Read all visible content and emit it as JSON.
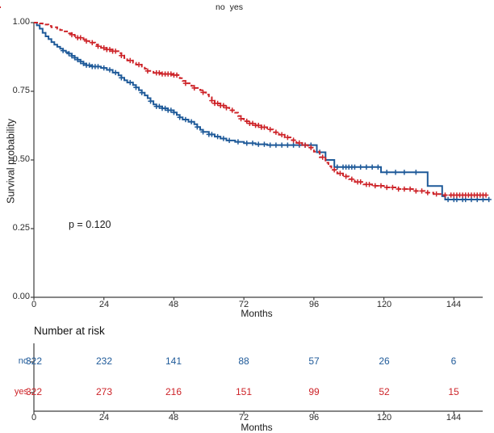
{
  "legend": {
    "items": [
      {
        "label": "no",
        "color": "#1f5a99",
        "line_style": "solid"
      },
      {
        "label": "yes",
        "color": "#cd2328",
        "line_style": "dashed"
      }
    ]
  },
  "plot": {
    "ylabel": "Survival probability",
    "xlabel": "Months",
    "pvalue": "p = 0.120",
    "yticks": [
      "1.00",
      "0.75",
      "0.50",
      "0.25",
      "0.00"
    ],
    "xticks": [
      "0",
      "24",
      "48",
      "72",
      "96",
      "120",
      "144"
    ]
  },
  "risk_table": {
    "title": "Number at risk",
    "xlabel": "Months",
    "xticks": [
      "0",
      "24",
      "48",
      "72",
      "96",
      "120",
      "144"
    ],
    "rows": [
      {
        "label": "no",
        "color": "#1f5a99",
        "values": [
          "322",
          "232",
          "141",
          "88",
          "57",
          "26",
          "6"
        ]
      },
      {
        "label": "yes",
        "color": "#cd2328",
        "values": [
          "322",
          "273",
          "216",
          "151",
          "99",
          "52",
          "15"
        ]
      }
    ]
  },
  "chart_data": {
    "type": "line",
    "subtype": "kaplan-meier-step",
    "title": "",
    "xlabel": "Months",
    "ylabel": "Survival probability",
    "xlim": [
      0,
      156
    ],
    "ylim": [
      0,
      1
    ],
    "xticks": [
      {
        "v": 0,
        "label": "0"
      },
      {
        "v": 24,
        "label": "24"
      },
      {
        "v": 48,
        "label": "48"
      },
      {
        "v": 72,
        "label": "72"
      },
      {
        "v": 96,
        "label": "96"
      },
      {
        "v": 120,
        "label": "120"
      },
      {
        "v": 144,
        "label": "144"
      }
    ],
    "yticks": [
      {
        "v": 1.0,
        "label": "1.00"
      },
      {
        "v": 0.75,
        "label": "0.75"
      },
      {
        "v": 0.5,
        "label": "0.50"
      },
      {
        "v": 0.25,
        "label": "0.25"
      },
      {
        "v": 0.0,
        "label": "0.00"
      }
    ],
    "grid": false,
    "legend_position": "top",
    "annotation": "p = 0.120",
    "series": [
      {
        "name": "no",
        "color": "#1f5a99",
        "style": "solid",
        "step_points": [
          [
            0,
            1.0
          ],
          [
            1,
            0.99
          ],
          [
            2,
            0.978
          ],
          [
            3,
            0.963
          ],
          [
            4,
            0.95
          ],
          [
            5,
            0.94
          ],
          [
            6,
            0.929
          ],
          [
            7,
            0.92
          ],
          [
            8,
            0.912
          ],
          [
            9,
            0.905
          ],
          [
            10,
            0.898
          ],
          [
            11,
            0.892
          ],
          [
            12,
            0.887
          ],
          [
            13,
            0.879
          ],
          [
            14,
            0.872
          ],
          [
            15,
            0.865
          ],
          [
            16,
            0.858
          ],
          [
            17,
            0.851
          ],
          [
            18,
            0.845
          ],
          [
            20,
            0.84
          ],
          [
            23,
            0.835
          ],
          [
            25,
            0.828
          ],
          [
            27,
            0.818
          ],
          [
            29,
            0.808
          ],
          [
            30,
            0.799
          ],
          [
            31,
            0.79
          ],
          [
            32,
            0.782
          ],
          [
            34,
            0.773
          ],
          [
            35,
            0.764
          ],
          [
            36,
            0.754
          ],
          [
            37,
            0.745
          ],
          [
            38,
            0.735
          ],
          [
            39,
            0.725
          ],
          [
            40,
            0.714
          ],
          [
            41,
            0.702
          ],
          [
            42,
            0.695
          ],
          [
            44,
            0.688
          ],
          [
            46,
            0.681
          ],
          [
            48,
            0.673
          ],
          [
            49,
            0.664
          ],
          [
            50,
            0.655
          ],
          [
            51,
            0.647
          ],
          [
            53,
            0.639
          ],
          [
            55,
            0.63
          ],
          [
            56,
            0.62
          ],
          [
            57,
            0.61
          ],
          [
            58,
            0.602
          ],
          [
            60,
            0.593
          ],
          [
            62,
            0.585
          ],
          [
            64,
            0.578
          ],
          [
            66,
            0.571
          ],
          [
            69,
            0.566
          ],
          [
            72,
            0.561
          ],
          [
            76,
            0.557
          ],
          [
            80,
            0.554
          ],
          [
            97,
            0.528
          ],
          [
            100,
            0.5
          ],
          [
            103,
            0.474
          ],
          [
            119,
            0.455
          ],
          [
            135,
            0.405
          ],
          [
            140,
            0.368
          ],
          [
            141,
            0.356
          ],
          [
            156,
            0.356
          ]
        ],
        "censor_times": [
          10,
          12,
          13,
          14,
          15,
          16,
          17,
          18,
          19,
          20,
          21,
          22,
          24,
          26,
          28,
          30,
          33,
          35,
          37,
          40,
          42,
          43,
          44,
          45,
          46,
          47,
          48,
          50,
          52,
          54,
          56,
          58,
          60,
          61,
          63,
          65,
          67,
          70,
          73,
          75,
          77,
          79,
          81,
          83,
          85,
          87,
          89,
          91,
          93,
          95,
          98,
          104,
          106,
          107,
          108,
          109,
          110,
          112,
          114,
          116,
          118,
          121,
          124,
          127,
          131,
          142,
          144,
          145,
          147,
          148,
          150,
          152,
          154,
          156
        ],
        "number_at_risk": [
          322,
          232,
          141,
          88,
          57,
          26,
          6
        ]
      },
      {
        "name": "yes",
        "color": "#cd2328",
        "style": "dashed",
        "step_points": [
          [
            0,
            1.0
          ],
          [
            2,
            0.997
          ],
          [
            3,
            0.993
          ],
          [
            5,
            0.988
          ],
          [
            6,
            0.983
          ],
          [
            8,
            0.978
          ],
          [
            9,
            0.973
          ],
          [
            10,
            0.968
          ],
          [
            12,
            0.961
          ],
          [
            13,
            0.956
          ],
          [
            14,
            0.951
          ],
          [
            15,
            0.945
          ],
          [
            17,
            0.939
          ],
          [
            18,
            0.933
          ],
          [
            19,
            0.927
          ],
          [
            21,
            0.92
          ],
          [
            22,
            0.914
          ],
          [
            23,
            0.908
          ],
          [
            25,
            0.902
          ],
          [
            27,
            0.896
          ],
          [
            29,
            0.889
          ],
          [
            30,
            0.88
          ],
          [
            31,
            0.871
          ],
          [
            32,
            0.862
          ],
          [
            34,
            0.854
          ],
          [
            35,
            0.847
          ],
          [
            37,
            0.84
          ],
          [
            38,
            0.832
          ],
          [
            39,
            0.824
          ],
          [
            41,
            0.817
          ],
          [
            44,
            0.813
          ],
          [
            48,
            0.809
          ],
          [
            50,
            0.798
          ],
          [
            51,
            0.788
          ],
          [
            52,
            0.779
          ],
          [
            54,
            0.77
          ],
          [
            55,
            0.762
          ],
          [
            57,
            0.754
          ],
          [
            58,
            0.746
          ],
          [
            59,
            0.738
          ],
          [
            60,
            0.728
          ],
          [
            61,
            0.716
          ],
          [
            62,
            0.706
          ],
          [
            64,
            0.698
          ],
          [
            66,
            0.69
          ],
          [
            67,
            0.681
          ],
          [
            69,
            0.672
          ],
          [
            70,
            0.66
          ],
          [
            71,
            0.65
          ],
          [
            72,
            0.641
          ],
          [
            74,
            0.633
          ],
          [
            76,
            0.626
          ],
          [
            78,
            0.619
          ],
          [
            80,
            0.611
          ],
          [
            82,
            0.601
          ],
          [
            84,
            0.592
          ],
          [
            86,
            0.582
          ],
          [
            88,
            0.572
          ],
          [
            90,
            0.562
          ],
          [
            92,
            0.554
          ],
          [
            94,
            0.545
          ],
          [
            96,
            0.53
          ],
          [
            98,
            0.51
          ],
          [
            100,
            0.49
          ],
          [
            101,
            0.477
          ],
          [
            102,
            0.464
          ],
          [
            104,
            0.451
          ],
          [
            106,
            0.44
          ],
          [
            108,
            0.43
          ],
          [
            110,
            0.42
          ],
          [
            113,
            0.411
          ],
          [
            116,
            0.406
          ],
          [
            120,
            0.4
          ],
          [
            125,
            0.394
          ],
          [
            130,
            0.387
          ],
          [
            134,
            0.381
          ],
          [
            137,
            0.376
          ],
          [
            140,
            0.372
          ],
          [
            155,
            0.372
          ]
        ],
        "censor_times": [
          13,
          15,
          16,
          18,
          20,
          22,
          24,
          25,
          26,
          27,
          28,
          30,
          33,
          36,
          39,
          42,
          43,
          44,
          45,
          46,
          47,
          48,
          49,
          52,
          55,
          58,
          61,
          62,
          63,
          64,
          65,
          66,
          68,
          71,
          73,
          74,
          75,
          76,
          77,
          78,
          79,
          81,
          83,
          85,
          87,
          89,
          91,
          93,
          95,
          99,
          103,
          105,
          107,
          109,
          111,
          112,
          114,
          115,
          117,
          119,
          121,
          123,
          125,
          127,
          129,
          131,
          133,
          135,
          138,
          141,
          143,
          144,
          145,
          146,
          147,
          148,
          149,
          150,
          151,
          152,
          153,
          154,
          155
        ],
        "number_at_risk": [
          322,
          273,
          216,
          151,
          99,
          52,
          15
        ]
      }
    ],
    "number_at_risk_times": [
      0,
      24,
      48,
      72,
      96,
      120,
      144
    ]
  }
}
